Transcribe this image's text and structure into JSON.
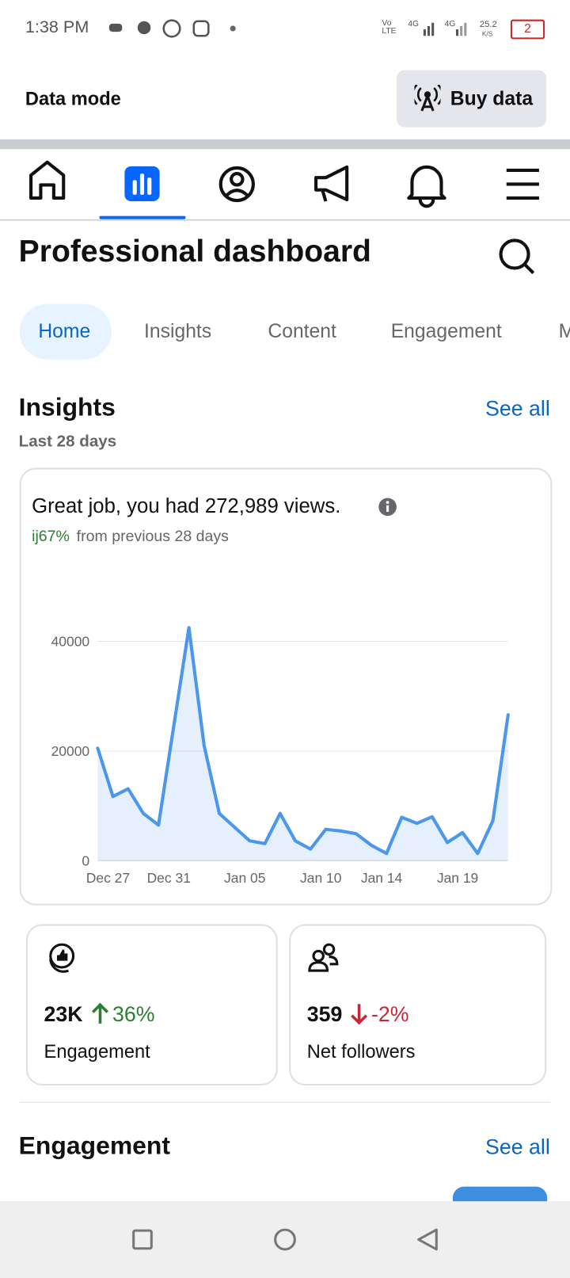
{
  "status_bar": {
    "time": "1:38 PM",
    "network_1": "Vo LTE",
    "network_2": "4G",
    "network_3": "4G",
    "speed": "25.2",
    "speed_unit": "K/S",
    "battery": "2"
  },
  "data_bar": {
    "label": "Data mode",
    "button": "Buy data"
  },
  "header": {
    "title": "Professional dashboard"
  },
  "tabs": [
    "Home",
    "Insights",
    "Content",
    "Engagement",
    "M"
  ],
  "insights": {
    "title": "Insights",
    "see_all": "See all",
    "period": "Last 28 days",
    "headline": "Great job, you had 272,989 views.",
    "change": "ij67%",
    "change_note": "from previous 28 days"
  },
  "chart_data": {
    "type": "line",
    "color": "#4c97ee",
    "categories": [
      null,
      "Dec 27",
      null,
      null,
      null,
      "Dec 31",
      null,
      null,
      null,
      null,
      "Jan 05",
      null,
      null,
      null,
      null,
      "Jan 10",
      null,
      null,
      null,
      "Jan 14",
      null,
      null,
      null,
      null,
      "Jan 19",
      null,
      null,
      null
    ],
    "values": [
      20500,
      11700,
      13100,
      8600,
      6500,
      24500,
      42500,
      21000,
      8600,
      6100,
      3600,
      3100,
      8600,
      3600,
      2100,
      5700,
      5400,
      4900,
      2800,
      1300,
      7900,
      6800,
      8000,
      3300,
      5100,
      1300,
      7300,
      26600
    ],
    "ylim": [
      0,
      45000
    ],
    "yticks": [
      0,
      20000,
      40000
    ],
    "grid": true
  },
  "cards": [
    {
      "value": "23K",
      "change": "36%",
      "label": "Engagement"
    },
    {
      "value": "359",
      "change": "-2%",
      "label": "Net followers"
    }
  ],
  "engagement": {
    "title": "Engagement",
    "see_all": "See all"
  }
}
